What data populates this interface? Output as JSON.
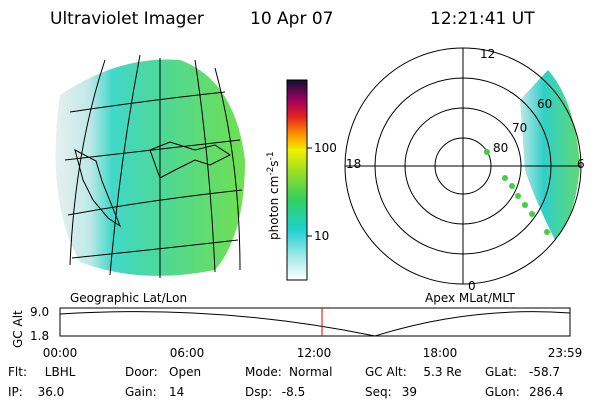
{
  "header": {
    "title": "Ultraviolet Imager",
    "date": "10 Apr 07",
    "time": "12:21:41 UT"
  },
  "geographic_panel": {
    "label": "Geographic Lat/Lon"
  },
  "colorbar": {
    "label": [
      "photon cm",
      "-2",
      "s",
      "-1"
    ],
    "ticks": [
      "100",
      "10"
    ]
  },
  "polar_panel": {
    "label": "Apex MLat/MLT",
    "mlt_labels": [
      "12",
      "18",
      "0",
      "6"
    ],
    "lat_labels": [
      "60",
      "70",
      "80"
    ]
  },
  "altitude_plot": {
    "ylabel": "GC Alt",
    "yticks": [
      "9.0",
      "1.8"
    ],
    "xticks": [
      "00:00",
      "06:00",
      "12:00",
      "18:00",
      "23:59"
    ]
  },
  "info": [
    [
      {
        "label": "Flt:",
        "value": "LBHL"
      },
      {
        "label": "Door:",
        "value": "Open"
      },
      {
        "label": "Mode:",
        "value": "Normal"
      },
      {
        "label": "GC Alt:",
        "value": "5.3 Re"
      },
      {
        "label": "GLat:",
        "value": "-58.7"
      }
    ],
    [
      {
        "label": "IP:",
        "value": "36.0"
      },
      {
        "label": "Gain:",
        "value": "14"
      },
      {
        "label": "Dsp:",
        "value": "-8.5"
      },
      {
        "label": "Seq:",
        "value": "39"
      },
      {
        "label": "GLon:",
        "value": "286.4"
      }
    ]
  ]
}
